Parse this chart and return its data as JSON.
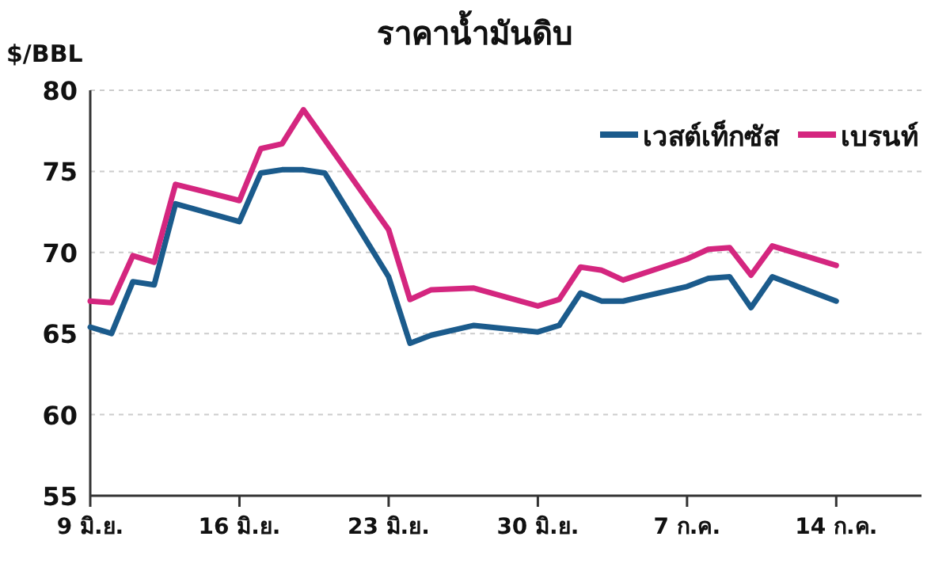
{
  "chart_data": {
    "type": "line",
    "title": "ราคาน้ำมันดิบ",
    "ylabel": "$/BBL",
    "x": [
      "--06-09",
      "--06-10",
      "--06-11",
      "--06-12",
      "--06-13",
      "--06-16",
      "--06-17",
      "--06-18",
      "--06-19",
      "--06-20",
      "--06-23",
      "--06-24",
      "--06-25",
      "--06-27",
      "--06-30",
      "--07-01",
      "--07-02",
      "--07-03",
      "--07-04",
      "--07-07",
      "--07-08",
      "--07-09",
      "--07-10",
      "--07-11",
      "--07-14"
    ],
    "series": [
      {
        "name": "เวสต์เท็กซัส",
        "color": "#1b5b8c",
        "values": [
          65.4,
          65.0,
          68.2,
          68.0,
          73.0,
          71.9,
          74.9,
          75.1,
          75.1,
          74.9,
          68.5,
          64.4,
          64.9,
          65.5,
          65.1,
          65.5,
          67.5,
          67.0,
          67.0,
          67.9,
          68.4,
          68.5,
          66.6,
          68.5,
          67.0
        ]
      },
      {
        "name": "เบรนท์",
        "color": "#d4267f",
        "values": [
          67.0,
          66.9,
          69.8,
          69.4,
          74.2,
          73.2,
          76.4,
          76.7,
          78.8,
          null,
          71.4,
          67.1,
          67.7,
          67.8,
          66.7,
          67.1,
          69.1,
          68.9,
          68.3,
          69.6,
          70.2,
          70.3,
          68.6,
          70.4,
          69.2
        ]
      }
    ],
    "xlim": [
      "--06-09",
      "--07-18"
    ],
    "xticks": [
      {
        "value": "--06-09",
        "label": "9 มิ.ย."
      },
      {
        "value": "--06-16",
        "label": "16 มิ.ย."
      },
      {
        "value": "--06-23",
        "label": "23 มิ.ย."
      },
      {
        "value": "--06-30",
        "label": "30 มิ.ย."
      },
      {
        "value": "--07-07",
        "label": "7 ก.ค."
      },
      {
        "value": "--07-14",
        "label": "14 ก.ค."
      }
    ],
    "ylim": [
      55,
      80
    ],
    "yticks": [
      55,
      60,
      65,
      70,
      75,
      80
    ],
    "grid": "y",
    "legend": "top right"
  }
}
